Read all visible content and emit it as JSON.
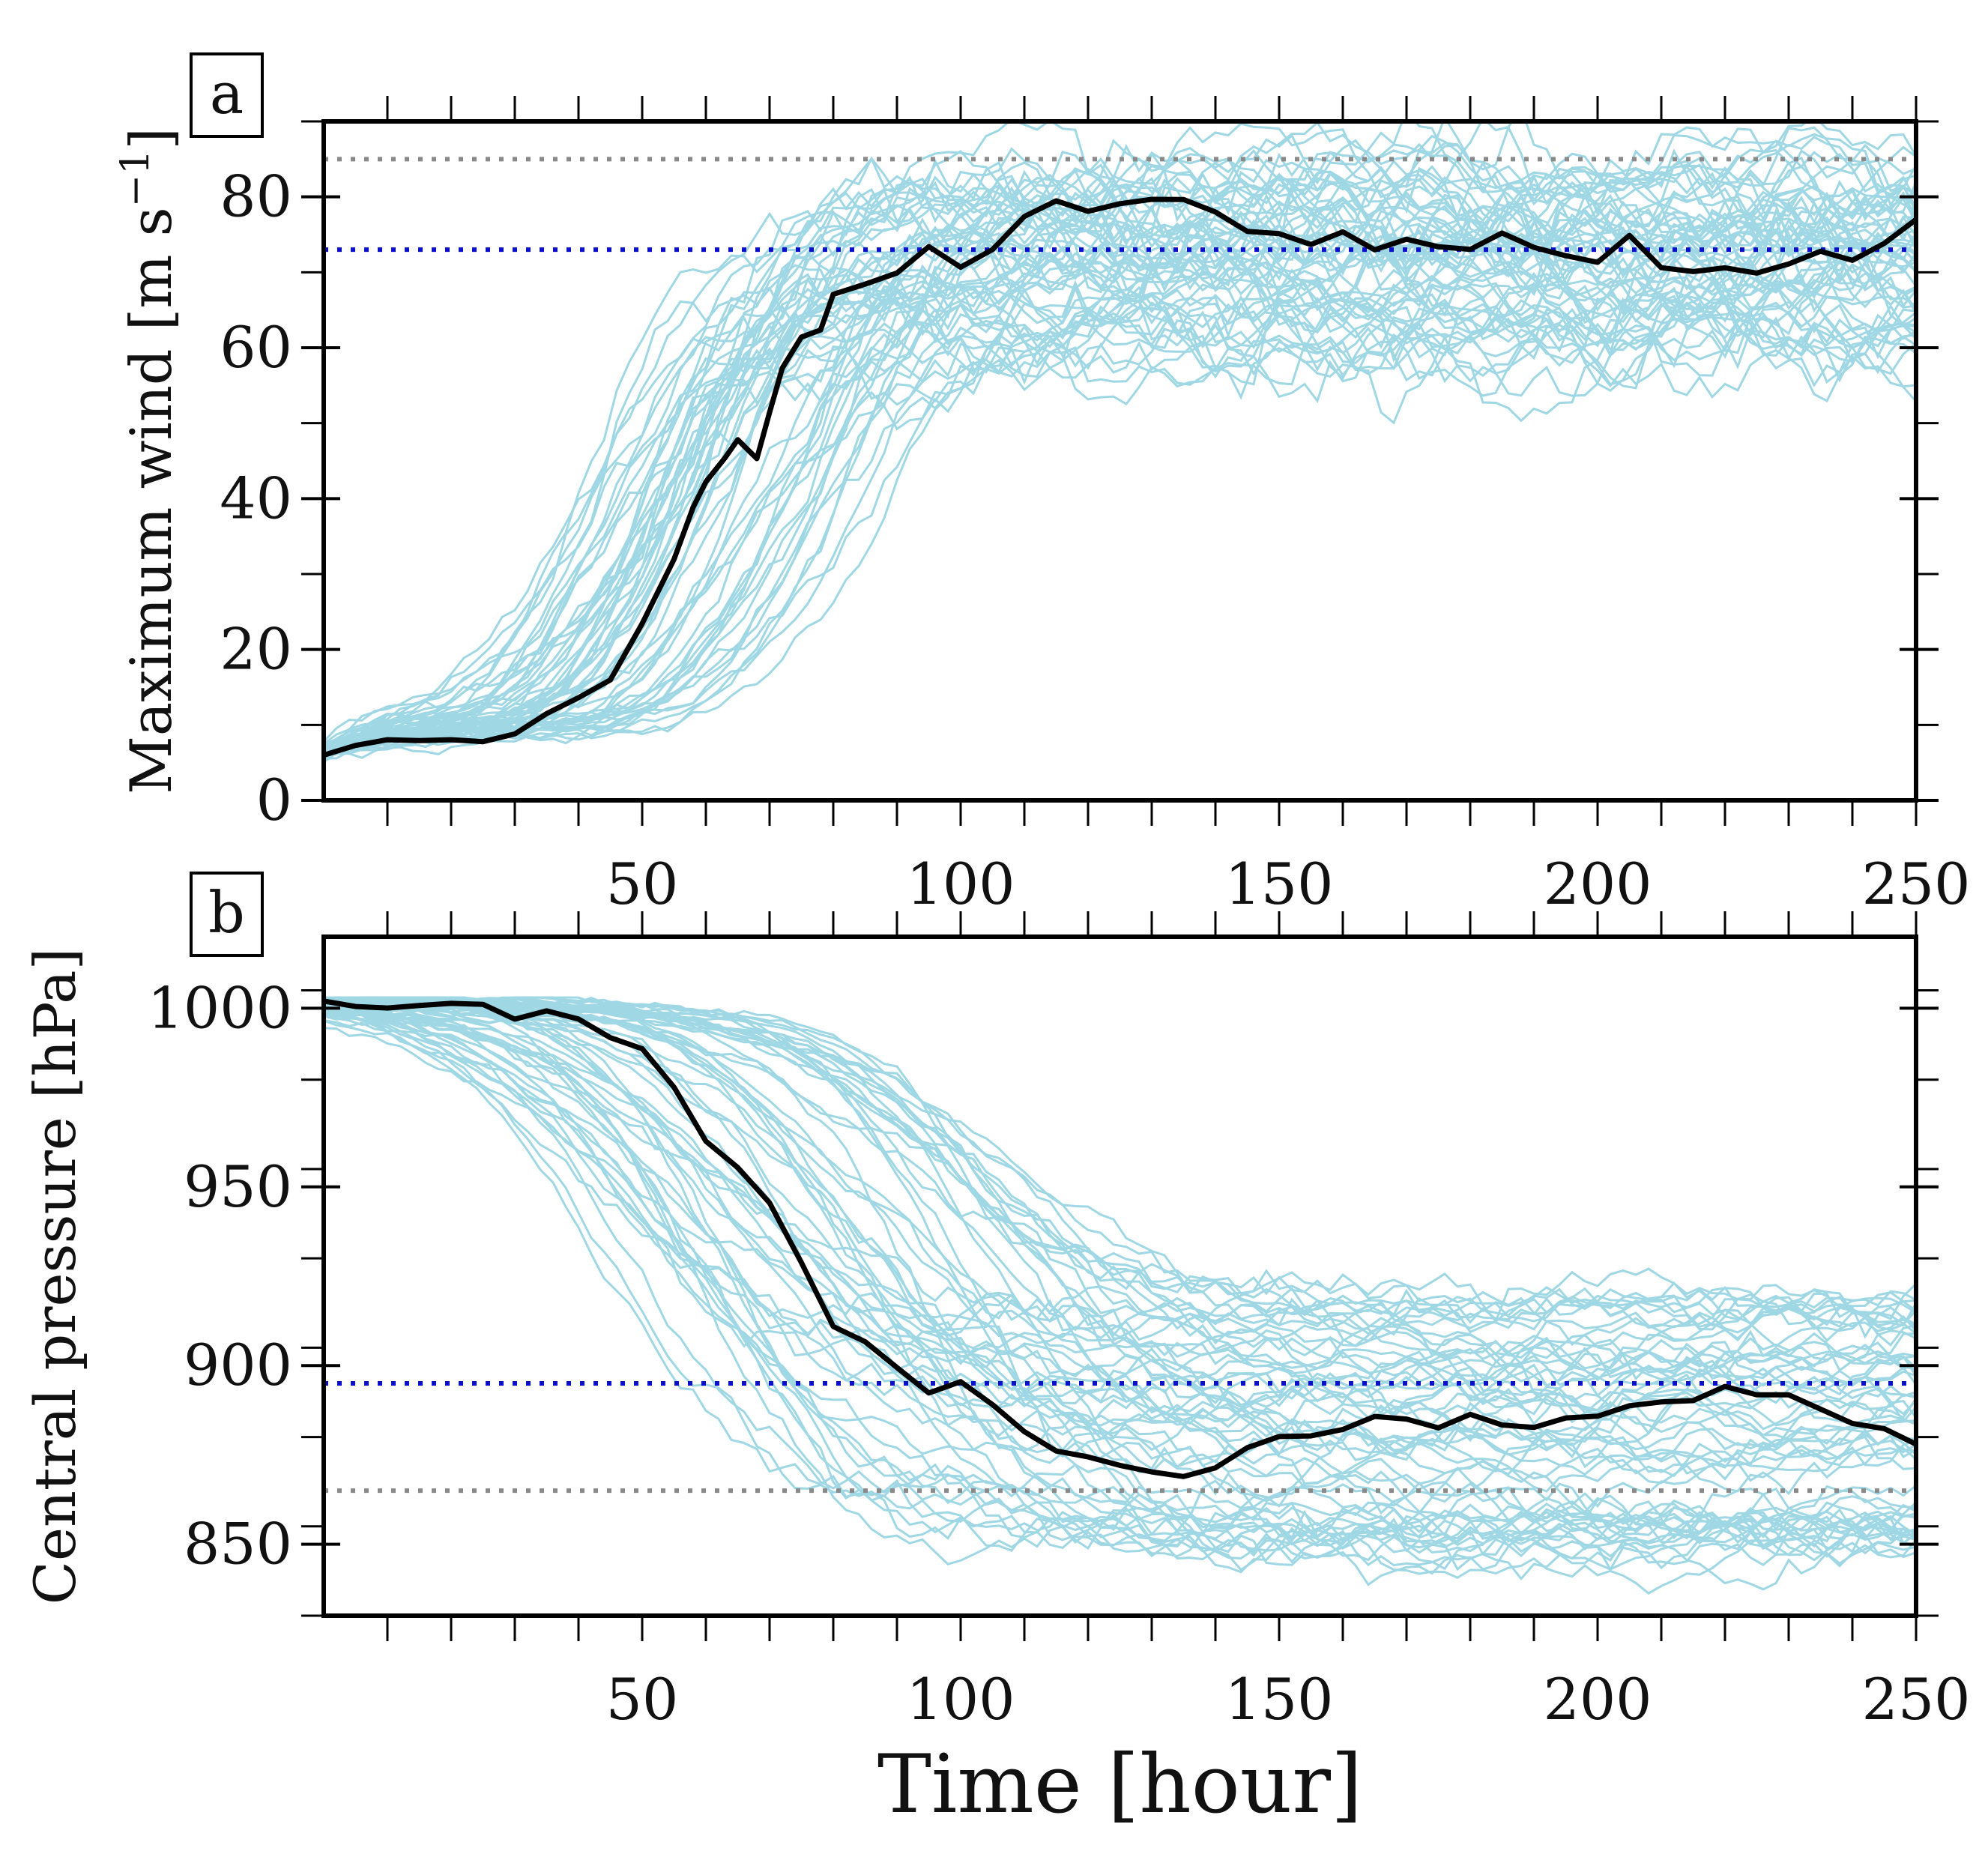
{
  "chart_data": [
    {
      "panel": "a",
      "type": "line",
      "ylabel": "Maximum wind [m s",
      "ylabel_superscript": "−1",
      "ylabel_tail": "]",
      "xlabel": "",
      "xlim": [
        0,
        250
      ],
      "ylim": [
        0,
        90
      ],
      "xticks": [
        50,
        100,
        150,
        200,
        250
      ],
      "yticks": [
        0,
        20,
        40,
        60,
        80
      ],
      "reference_lines": [
        {
          "name": "gray-reference",
          "y": 85,
          "color": "#8a8a8a"
        },
        {
          "name": "blue-reference",
          "y": 73,
          "color": "#0a10c8"
        }
      ],
      "ensemble": {
        "color": "#9fd8e4",
        "members": 60,
        "description_series": "light-blue ensemble members",
        "initial": 6,
        "onset_range_hours": [
          40,
          85
        ],
        "final_range": [
          58,
          84
        ]
      },
      "series": [
        {
          "name": "control",
          "color": "#000000",
          "x": [
            0,
            5,
            10,
            15,
            20,
            25,
            30,
            35,
            40,
            45,
            50,
            55,
            58,
            60,
            63,
            65,
            68,
            70,
            72,
            75,
            78,
            80,
            85,
            90,
            95,
            100,
            105,
            110,
            115,
            120,
            125,
            130,
            135,
            140,
            145,
            150,
            155,
            160,
            165,
            170,
            175,
            180,
            185,
            190,
            195,
            200,
            205,
            210,
            215,
            220,
            225,
            230,
            235,
            240,
            245,
            250
          ],
          "y": [
            6,
            7,
            8,
            9,
            8,
            9,
            10,
            11,
            13,
            16,
            24,
            33,
            39,
            43,
            46,
            46,
            46,
            52,
            57,
            60,
            63,
            67,
            69,
            71,
            72,
            71,
            74,
            77,
            78,
            78,
            79,
            79,
            80,
            77,
            76,
            76,
            75,
            75,
            73,
            74,
            74,
            73,
            75,
            74,
            73,
            72,
            73,
            72,
            71,
            70,
            71,
            72,
            73,
            72,
            74,
            77
          ]
        }
      ]
    },
    {
      "panel": "b",
      "type": "line",
      "ylabel": "Central pressure [hPa]",
      "xlabel": "Time [hour]",
      "xlim": [
        0,
        250
      ],
      "ylim": [
        830,
        1020
      ],
      "xticks": [
        50,
        100,
        150,
        200,
        250
      ],
      "yticks": [
        850,
        900,
        950,
        1000
      ],
      "reference_lines": [
        {
          "name": "blue-reference",
          "y": 895,
          "color": "#0a10c8"
        },
        {
          "name": "gray-reference",
          "y": 865,
          "color": "#8a8a8a"
        }
      ],
      "ensemble": {
        "color": "#9fd8e4",
        "members": 60,
        "description_series": "light-blue ensemble members",
        "initial": 1002,
        "onset_range_hours": [
          40,
          110
        ],
        "final_range": [
          843,
          918
        ]
      },
      "series": [
        {
          "name": "control",
          "color": "#000000",
          "x": [
            0,
            5,
            10,
            15,
            20,
            25,
            30,
            35,
            40,
            45,
            50,
            55,
            60,
            65,
            70,
            75,
            80,
            85,
            90,
            95,
            100,
            105,
            110,
            115,
            120,
            125,
            130,
            135,
            140,
            145,
            150,
            155,
            160,
            165,
            170,
            175,
            180,
            185,
            190,
            195,
            200,
            205,
            210,
            215,
            220,
            225,
            230,
            235,
            240,
            245,
            250
          ],
          "y": [
            1002,
            1002,
            1002,
            1002,
            1001,
            1001,
            1000,
            999,
            997,
            993,
            989,
            978,
            964,
            956,
            947,
            930,
            912,
            905,
            900,
            893,
            895,
            888,
            882,
            876,
            873,
            872,
            871,
            869,
            872,
            878,
            880,
            881,
            882,
            884,
            885,
            883,
            885,
            883,
            884,
            885,
            887,
            889,
            890,
            891,
            894,
            893,
            890,
            888,
            885,
            883,
            878
          ]
        }
      ]
    }
  ]
}
